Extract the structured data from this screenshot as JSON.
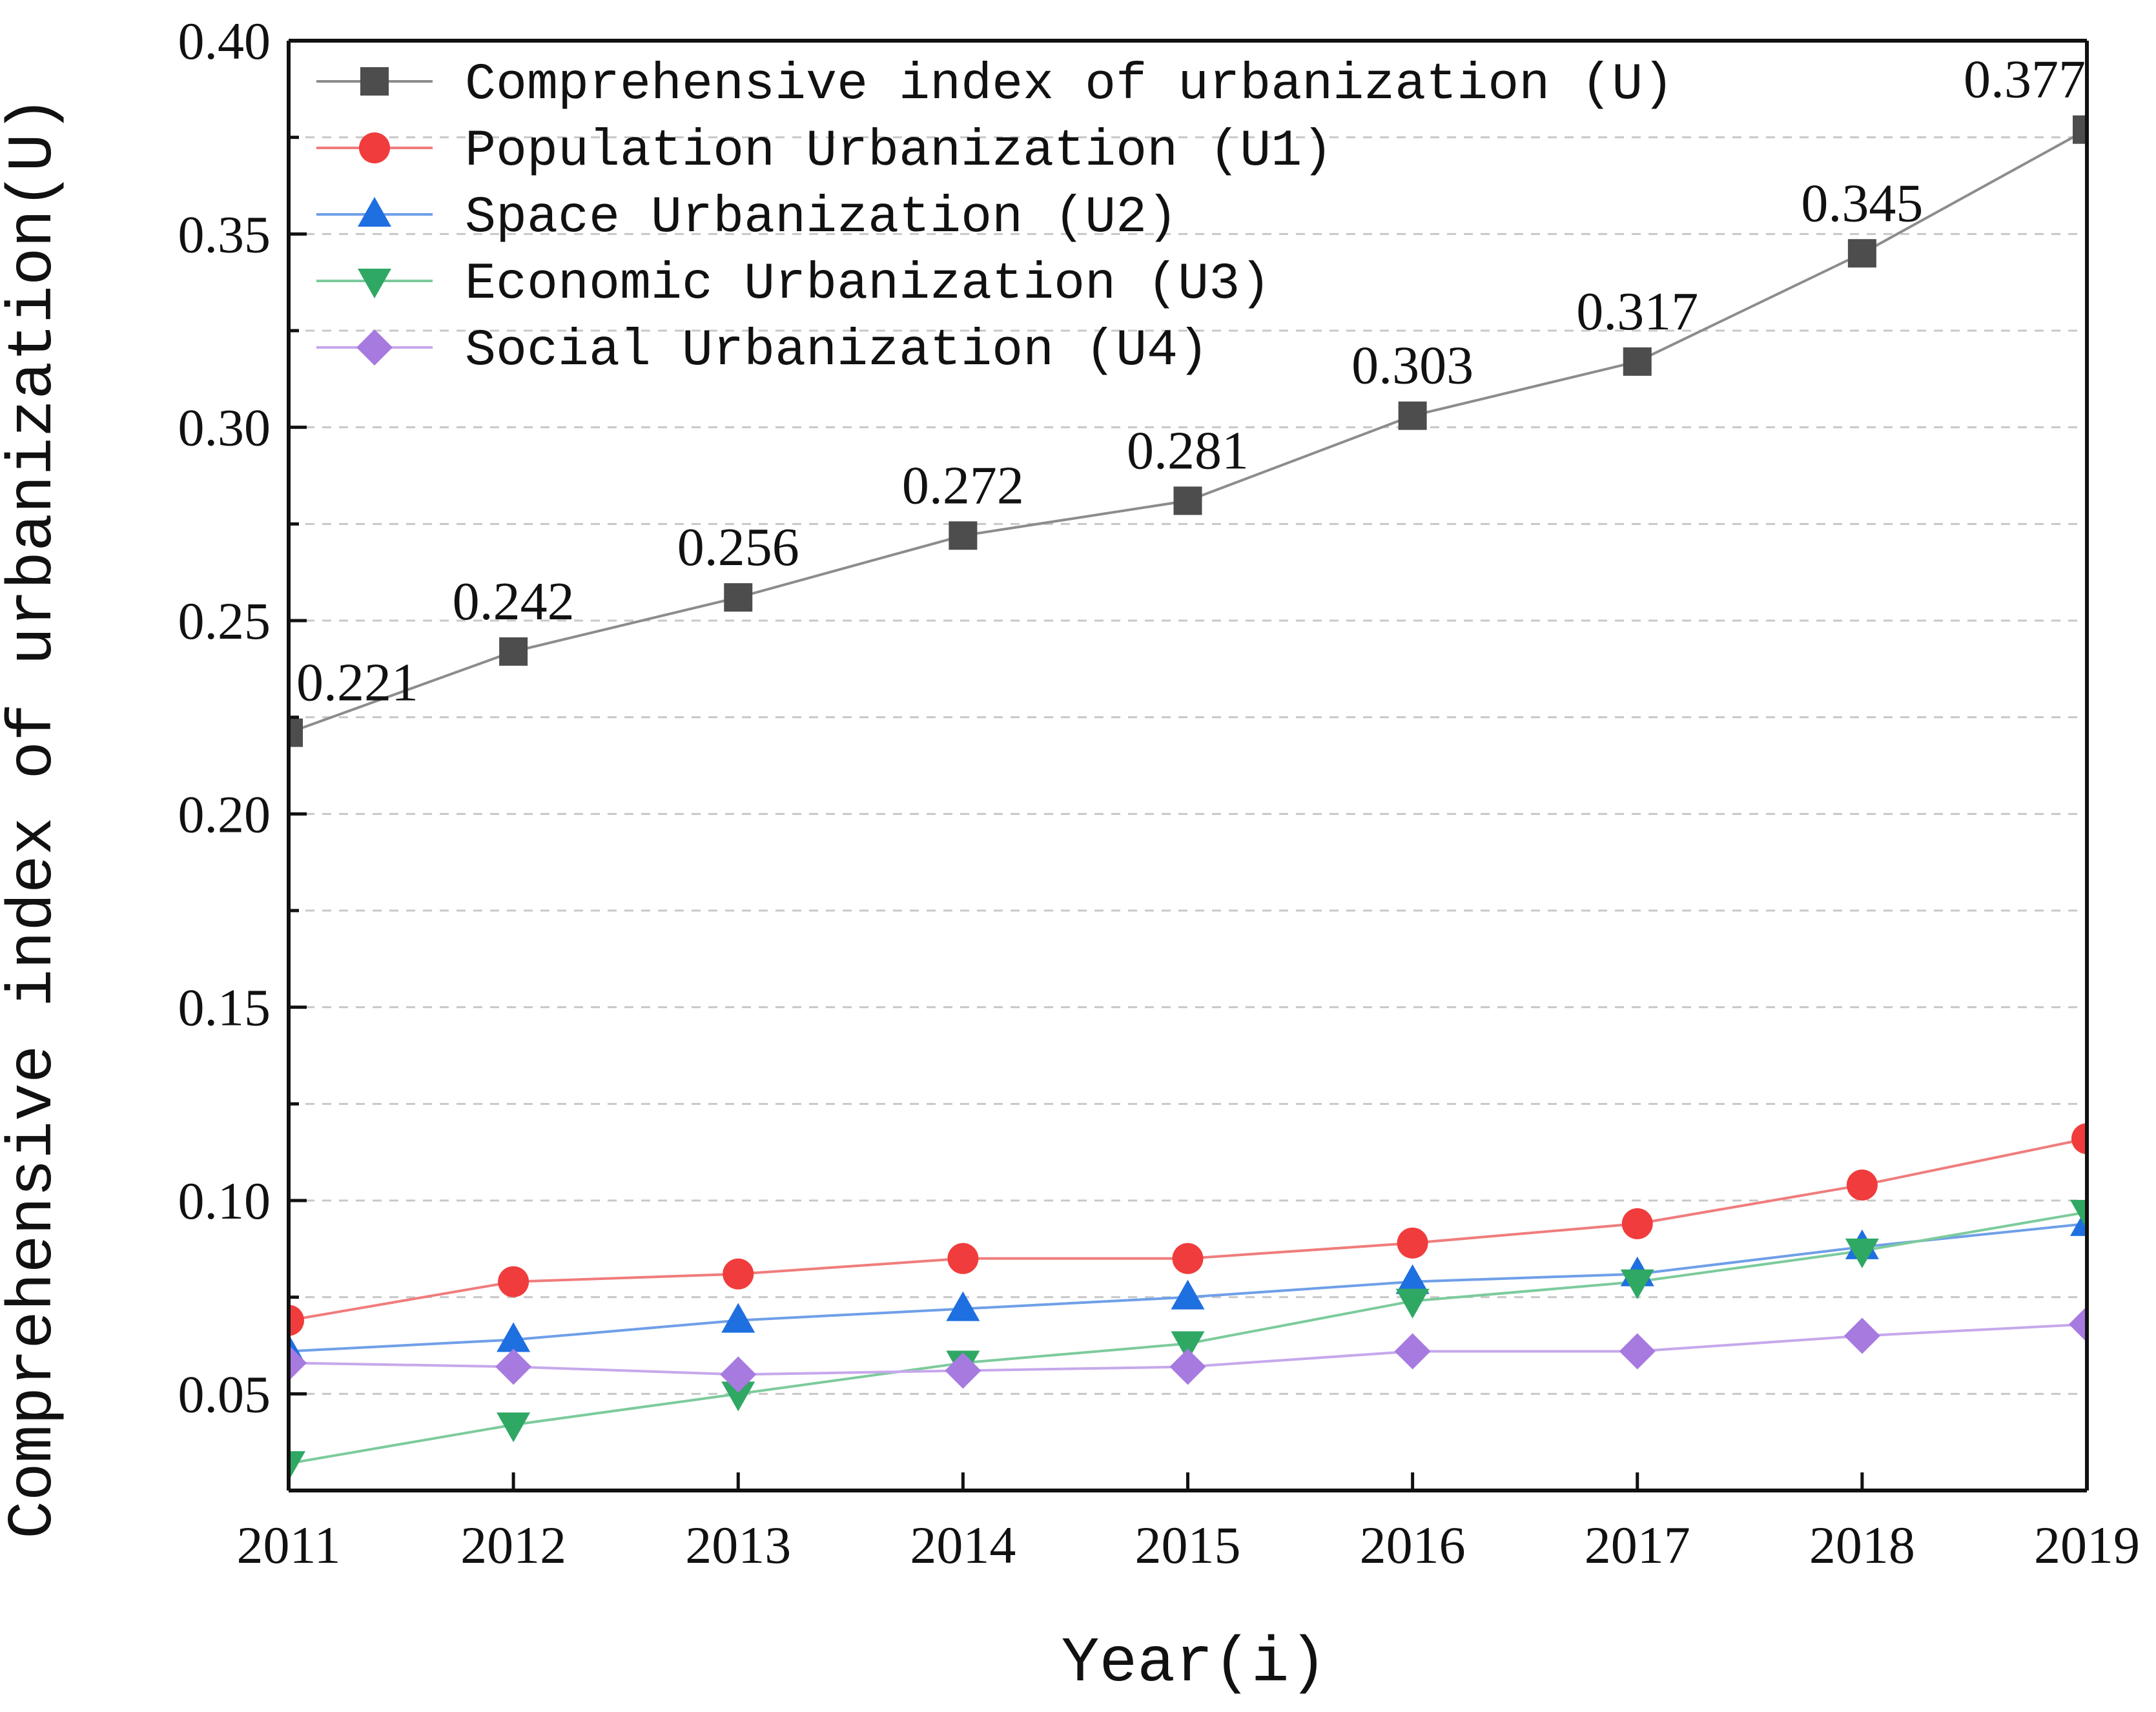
{
  "chart_data": {
    "type": "line",
    "xlabel": "Year(i)",
    "ylabel": "Comprehensive index of urbanization(U)",
    "x": [
      2011,
      2012,
      2013,
      2014,
      2015,
      2016,
      2017,
      2018,
      2019
    ],
    "x_tick_labels": [
      "2011",
      "2012",
      "2013",
      "2014",
      "2015",
      "2016",
      "2017",
      "2018",
      "2019"
    ],
    "ylim": [
      0.025,
      0.4
    ],
    "y_ticks": [
      0.05,
      0.1,
      0.15,
      0.2,
      0.25,
      0.3,
      0.35,
      0.4
    ],
    "y_tick_labels": [
      "0.05",
      "0.10",
      "0.15",
      "0.20",
      "0.25",
      "0.30",
      "0.35",
      "0.40"
    ],
    "grid": "horizontal dashed",
    "legend_position": "top-left",
    "series": [
      {
        "name": "Comprehensive index of urbanization (U)",
        "marker": "square",
        "color": "#4d4d4d",
        "line_color": "#8c8c8c",
        "values": [
          0.221,
          0.242,
          0.256,
          0.272,
          0.281,
          0.303,
          0.317,
          0.345,
          0.377
        ],
        "data_labels": [
          "0.221",
          "0.242",
          "0.256",
          "0.272",
          "0.281",
          "0.303",
          "0.317",
          "0.345",
          "0.377"
        ]
      },
      {
        "name": "Population Urbanization (U1)",
        "marker": "circle",
        "color": "#f03c3c",
        "line_color": "#f07c7c",
        "values": [
          0.069,
          0.079,
          0.081,
          0.085,
          0.085,
          0.089,
          0.094,
          0.104,
          0.116
        ]
      },
      {
        "name": "Space Urbanization (U2)",
        "marker": "triangle-up",
        "color": "#1e6fe0",
        "line_color": "#6f9fe8",
        "values": [
          0.061,
          0.064,
          0.069,
          0.072,
          0.075,
          0.079,
          0.081,
          0.088,
          0.094
        ]
      },
      {
        "name": "Economic Urbanization (U3)",
        "marker": "triangle-down",
        "color": "#2fa864",
        "line_color": "#7ccb9c",
        "values": [
          0.032,
          0.042,
          0.05,
          0.058,
          0.063,
          0.074,
          0.079,
          0.087,
          0.097
        ]
      },
      {
        "name": "Social Urbanization (U4)",
        "marker": "diamond",
        "color": "#a77ae0",
        "line_color": "#c6a8ec",
        "values": [
          0.058,
          0.057,
          0.055,
          0.056,
          0.057,
          0.061,
          0.061,
          0.065,
          0.068
        ]
      }
    ]
  }
}
